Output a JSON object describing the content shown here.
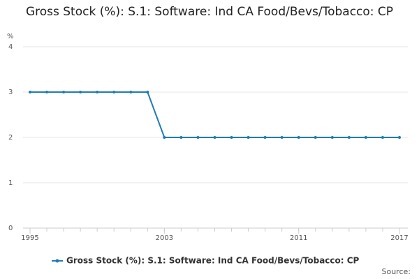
{
  "chart_data": {
    "type": "line",
    "title": "Gross Stock (%): S.1: Software: Ind CA Food/Bevs/Tobacco: CP",
    "y_label": "%",
    "source": "Source:",
    "x": [
      1995,
      1996,
      1997,
      1998,
      1999,
      2000,
      2001,
      2002,
      2003,
      2004,
      2005,
      2006,
      2007,
      2008,
      2009,
      2010,
      2011,
      2012,
      2013,
      2014,
      2015,
      2016,
      2017
    ],
    "series": [
      {
        "name": "Gross Stock (%): S.1: Software: Ind CA Food/Bevs/Tobacco: CP",
        "color": "#1f7bb6",
        "values": [
          3,
          3,
          3,
          3,
          3,
          3,
          3,
          3,
          2,
          2,
          2,
          2,
          2,
          2,
          2,
          2,
          2,
          2,
          2,
          2,
          2,
          2,
          2
        ]
      }
    ],
    "xlim": [
      1995,
      2017
    ],
    "xticks": [
      1995,
      2003,
      2011,
      2017
    ],
    "ylim": [
      0,
      4
    ],
    "yticks": [
      0,
      1,
      2,
      3,
      4
    ],
    "grid": true
  }
}
